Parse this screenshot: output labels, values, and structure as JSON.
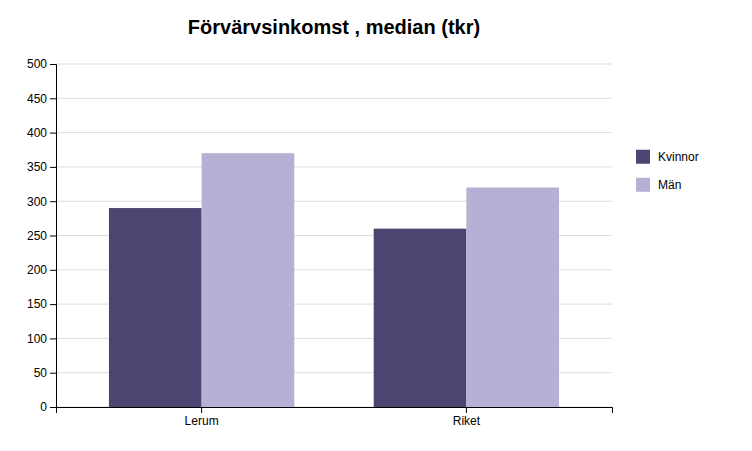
{
  "chart_data": {
    "type": "bar",
    "title": "Förvärvsinkomst , median (tkr)",
    "categories": [
      "Lerum",
      "Riket"
    ],
    "series": [
      {
        "name": "Kvinnor",
        "color": "#4d4472",
        "values": [
          290,
          260
        ]
      },
      {
        "name": "Män",
        "color": "#b8afd4",
        "values": [
          370,
          320
        ]
      }
    ],
    "ylim": [
      0,
      500
    ],
    "yticks": [
      0,
      50,
      100,
      150,
      200,
      250,
      300,
      350,
      400,
      450,
      500
    ],
    "grid": true,
    "legend": "right"
  }
}
